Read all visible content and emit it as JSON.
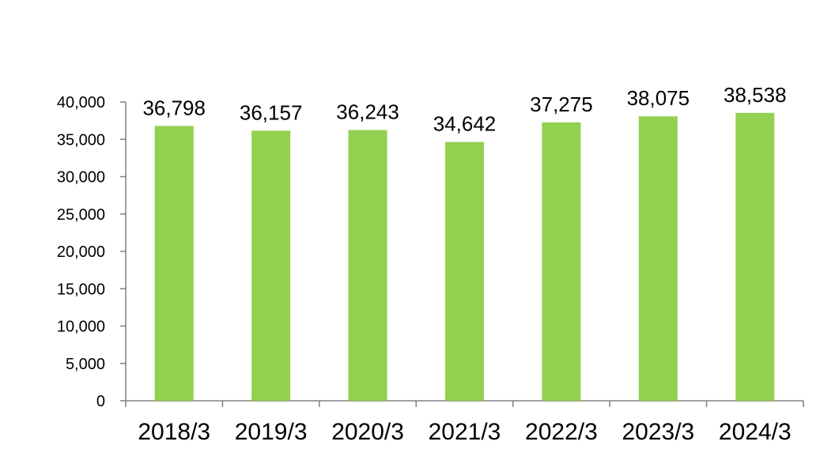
{
  "chart_data": {
    "type": "bar",
    "title": "",
    "xlabel": "",
    "ylabel": "",
    "categories": [
      "2018/3",
      "2019/3",
      "2020/3",
      "2021/3",
      "2022/3",
      "2023/3",
      "2024/3"
    ],
    "values": [
      36798,
      36157,
      36243,
      34642,
      37275,
      38075,
      38538
    ],
    "value_labels": [
      "36,798",
      "36,157",
      "36,243",
      "34,642",
      "37,275",
      "38,075",
      "38,538"
    ],
    "ylim": [
      0,
      40000
    ],
    "yticks": [
      0,
      5000,
      10000,
      15000,
      20000,
      25000,
      30000,
      35000,
      40000
    ],
    "ytick_labels": [
      "0",
      "5,000",
      "10,000",
      "15,000",
      "20,000",
      "25,000",
      "30,000",
      "35,000",
      "40,000"
    ],
    "grid": false,
    "legend": "none",
    "bar_color": "#92D050",
    "axis_color": "#808080"
  }
}
